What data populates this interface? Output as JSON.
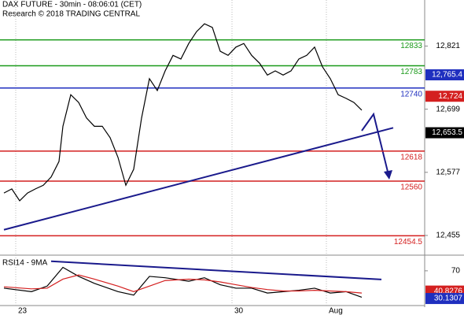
{
  "chart_data": [
    {
      "type": "line",
      "title": "DAX FUTURE - 30min - 08:06:01 (CET)",
      "subtitle": "Research © 2018 TRADING CENTRAL",
      "x": [
        1,
        3,
        5,
        7,
        9,
        11,
        13,
        15,
        16,
        18,
        20,
        22,
        24,
        26,
        28,
        30,
        32,
        34,
        36,
        38,
        40,
        42,
        44,
        46,
        48,
        50,
        52,
        54,
        56,
        58,
        60,
        62,
        64,
        66,
        68,
        70,
        72,
        74,
        76,
        78,
        80,
        82,
        84,
        86,
        88,
        90,
        92
      ],
      "series": [
        {
          "color": "#000000",
          "values": [
            12537,
            12545,
            12522,
            12537,
            12545,
            12552,
            12568,
            12598,
            12666,
            12727,
            12712,
            12682,
            12666,
            12666,
            12644,
            12606,
            12552,
            12583,
            12682,
            12758,
            12735,
            12773,
            12803,
            12796,
            12826,
            12849,
            12864,
            12857,
            12811,
            12803,
            12819,
            12826,
            12803,
            12788,
            12765,
            12773,
            12765,
            12773,
            12796,
            12803,
            12819,
            12781,
            12758,
            12727,
            12720,
            12712,
            12697
          ]
        }
      ],
      "xlim": [
        0,
        108
      ],
      "xticks": [
        {
          "value": 4,
          "label": "23"
        },
        {
          "value": 59,
          "label": "30"
        },
        {
          "value": 83,
          "label": "Aug"
        }
      ],
      "ylim": [
        12420,
        12910
      ],
      "yticks": [
        {
          "value": 12455,
          "label": "12,455"
        },
        {
          "value": 12577,
          "label": "12,577"
        },
        {
          "value": 12699,
          "label": "12,699"
        },
        {
          "value": 12821,
          "label": "12,821"
        }
      ],
      "levels": [
        {
          "value": 12833,
          "color": "#1a9a1a"
        },
        {
          "value": 12783,
          "color": "#1a9a1a"
        },
        {
          "value": 12740,
          "color": "#1f2fbf"
        },
        {
          "value": 12618,
          "color": "#d42020"
        },
        {
          "value": 12560,
          "color": "#d42020"
        },
        {
          "value": 12454.5,
          "color": "#d42020"
        }
      ],
      "markers": [
        {
          "value": 12765.4,
          "label": "12,765.4",
          "color": "#1f2fbf"
        },
        {
          "value": 12724,
          "label": "12,724",
          "color": "#d42020"
        },
        {
          "value": 12653.5,
          "label": "12,653.5",
          "color": "#000000"
        }
      ],
      "trendline": {
        "x": [
          1,
          100
        ],
        "values": [
          12466,
          12663
        ],
        "color": "#1a1a8c"
      }
    },
    {
      "type": "line",
      "title": "RSI14 - 9MA",
      "x": [
        1,
        8,
        12,
        16,
        20,
        24,
        30,
        34,
        38,
        42,
        48,
        52,
        56,
        60,
        64,
        68,
        72,
        76,
        80,
        84,
        88,
        92
      ],
      "series": [
        {
          "color": "#000000",
          "values": [
            45,
            40,
            48,
            75,
            62,
            52,
            40,
            35,
            62,
            60,
            55,
            60,
            50,
            45,
            45,
            38,
            40,
            42,
            45,
            38,
            40,
            32
          ]
        },
        {
          "color": "#d42020",
          "values": [
            47,
            44,
            45,
            58,
            64,
            58,
            48,
            40,
            48,
            56,
            58,
            57,
            54,
            50,
            46,
            43,
            41,
            41,
            42,
            41,
            40,
            38
          ]
        }
      ],
      "xlim": [
        0,
        108
      ],
      "ylim": [
        20,
        88
      ],
      "yticks": [
        70
      ],
      "markers": [
        {
          "value": 40.8276,
          "color": "#d42020"
        },
        {
          "value": 30.1307,
          "color": "#1f2fbf"
        }
      ],
      "trendline": {
        "x": [
          13,
          97
        ],
        "values": [
          83.7,
          57.5
        ],
        "color": "#1a1a8c"
      }
    }
  ]
}
